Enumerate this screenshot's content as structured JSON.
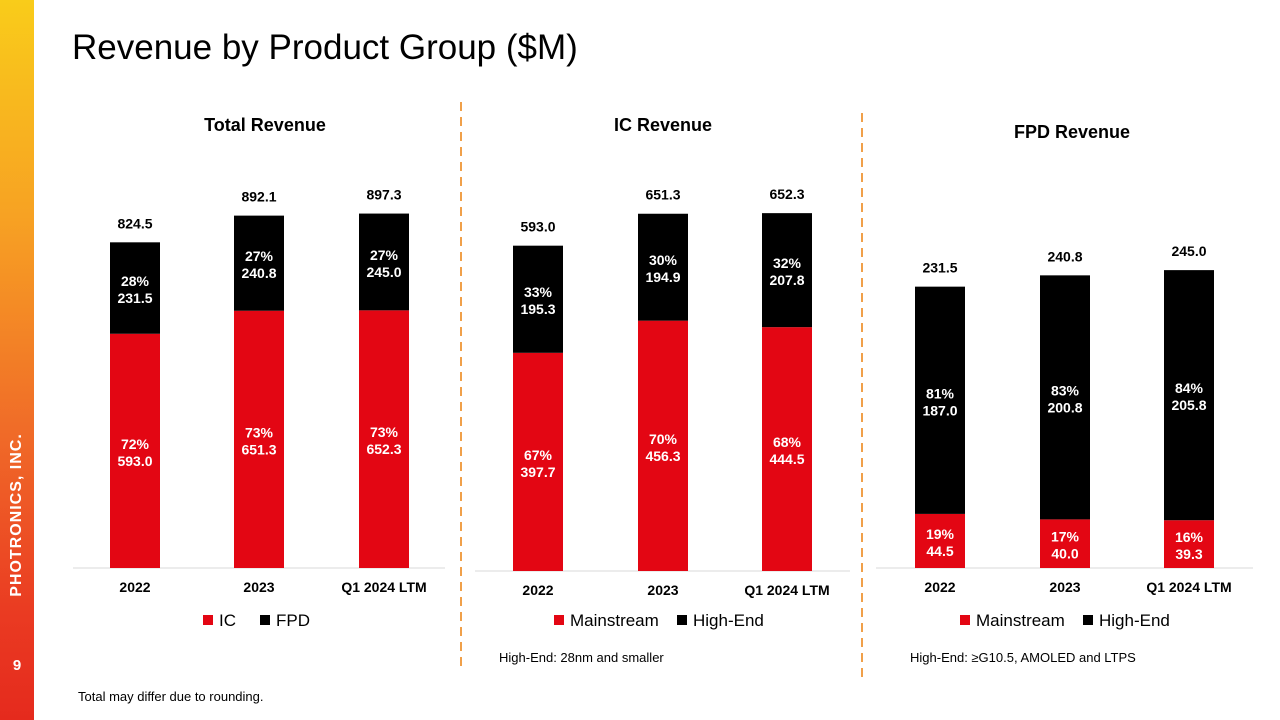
{
  "slide": {
    "title": "Revenue by Product Group ($M)",
    "company": "PHOTRONICS, INC.",
    "page_number": "9",
    "footnotes": {
      "rounding": "Total may differ due to rounding.",
      "ic_note": "High-End: 28nm and smaller",
      "fpd_note": "High-End: ≥G10.5, AMOLED and LTPS"
    }
  },
  "colors": {
    "red": "#e30613",
    "black": "#000000",
    "divider": "#f0a04a"
  },
  "chart_data": [
    {
      "type": "bar",
      "stacked": true,
      "title": "Total Revenue",
      "categories": [
        "2022",
        "2023",
        "Q1 2024 LTM"
      ],
      "totals": [
        "824.5",
        "892.1",
        "897.3"
      ],
      "series": [
        {
          "name": "IC",
          "color": "#e30613",
          "values": [
            593.0,
            651.3,
            652.3
          ],
          "value_labels": [
            "593.0",
            "651.3",
            "652.3"
          ],
          "pct_labels": [
            "72%",
            "73%",
            "73%"
          ]
        },
        {
          "name": "FPD",
          "color": "#000000",
          "values": [
            231.5,
            240.8,
            245.0
          ],
          "value_labels": [
            "231.5",
            "240.8",
            "245.0"
          ],
          "pct_labels": [
            "28%",
            "27%",
            "27%"
          ]
        }
      ],
      "ylim": [
        0,
        1000
      ],
      "legend": "bottom",
      "grid": false
    },
    {
      "type": "bar",
      "stacked": true,
      "title": "IC Revenue",
      "categories": [
        "2022",
        "2023",
        "Q1 2024 LTM"
      ],
      "totals": [
        "593.0",
        "651.3",
        "652.3"
      ],
      "series": [
        {
          "name": "Mainstream",
          "color": "#e30613",
          "values": [
            397.7,
            456.3,
            444.5
          ],
          "value_labels": [
            "397.7",
            "456.3",
            "444.5"
          ],
          "pct_labels": [
            "67%",
            "70%",
            "68%"
          ]
        },
        {
          "name": "High-End",
          "color": "#000000",
          "values": [
            195.3,
            194.9,
            207.8
          ],
          "value_labels": [
            "195.3",
            "194.9",
            "207.8"
          ],
          "pct_labels": [
            "33%",
            "30%",
            "32%"
          ]
        }
      ],
      "ylim": [
        0,
        720
      ],
      "legend": "bottom",
      "grid": false
    },
    {
      "type": "bar",
      "stacked": true,
      "title": "FPD Revenue",
      "categories": [
        "2022",
        "2023",
        "Q1 2024 LTM"
      ],
      "totals": [
        "231.5",
        "240.8",
        "245.0"
      ],
      "series": [
        {
          "name": "Mainstream",
          "color": "#e30613",
          "values": [
            44.5,
            40.0,
            39.3
          ],
          "value_labels": [
            "44.5",
            "40.0",
            "39.3"
          ],
          "pct_labels": [
            "19%",
            "17%",
            "16%"
          ]
        },
        {
          "name": "High-End",
          "color": "#000000",
          "values": [
            187.0,
            200.8,
            205.8
          ],
          "value_labels": [
            "187.0",
            "200.8",
            "205.8"
          ],
          "pct_labels": [
            "81%",
            "83%",
            "84%"
          ]
        }
      ],
      "ylim": [
        0,
        274
      ],
      "legend": "bottom",
      "grid": false
    }
  ]
}
